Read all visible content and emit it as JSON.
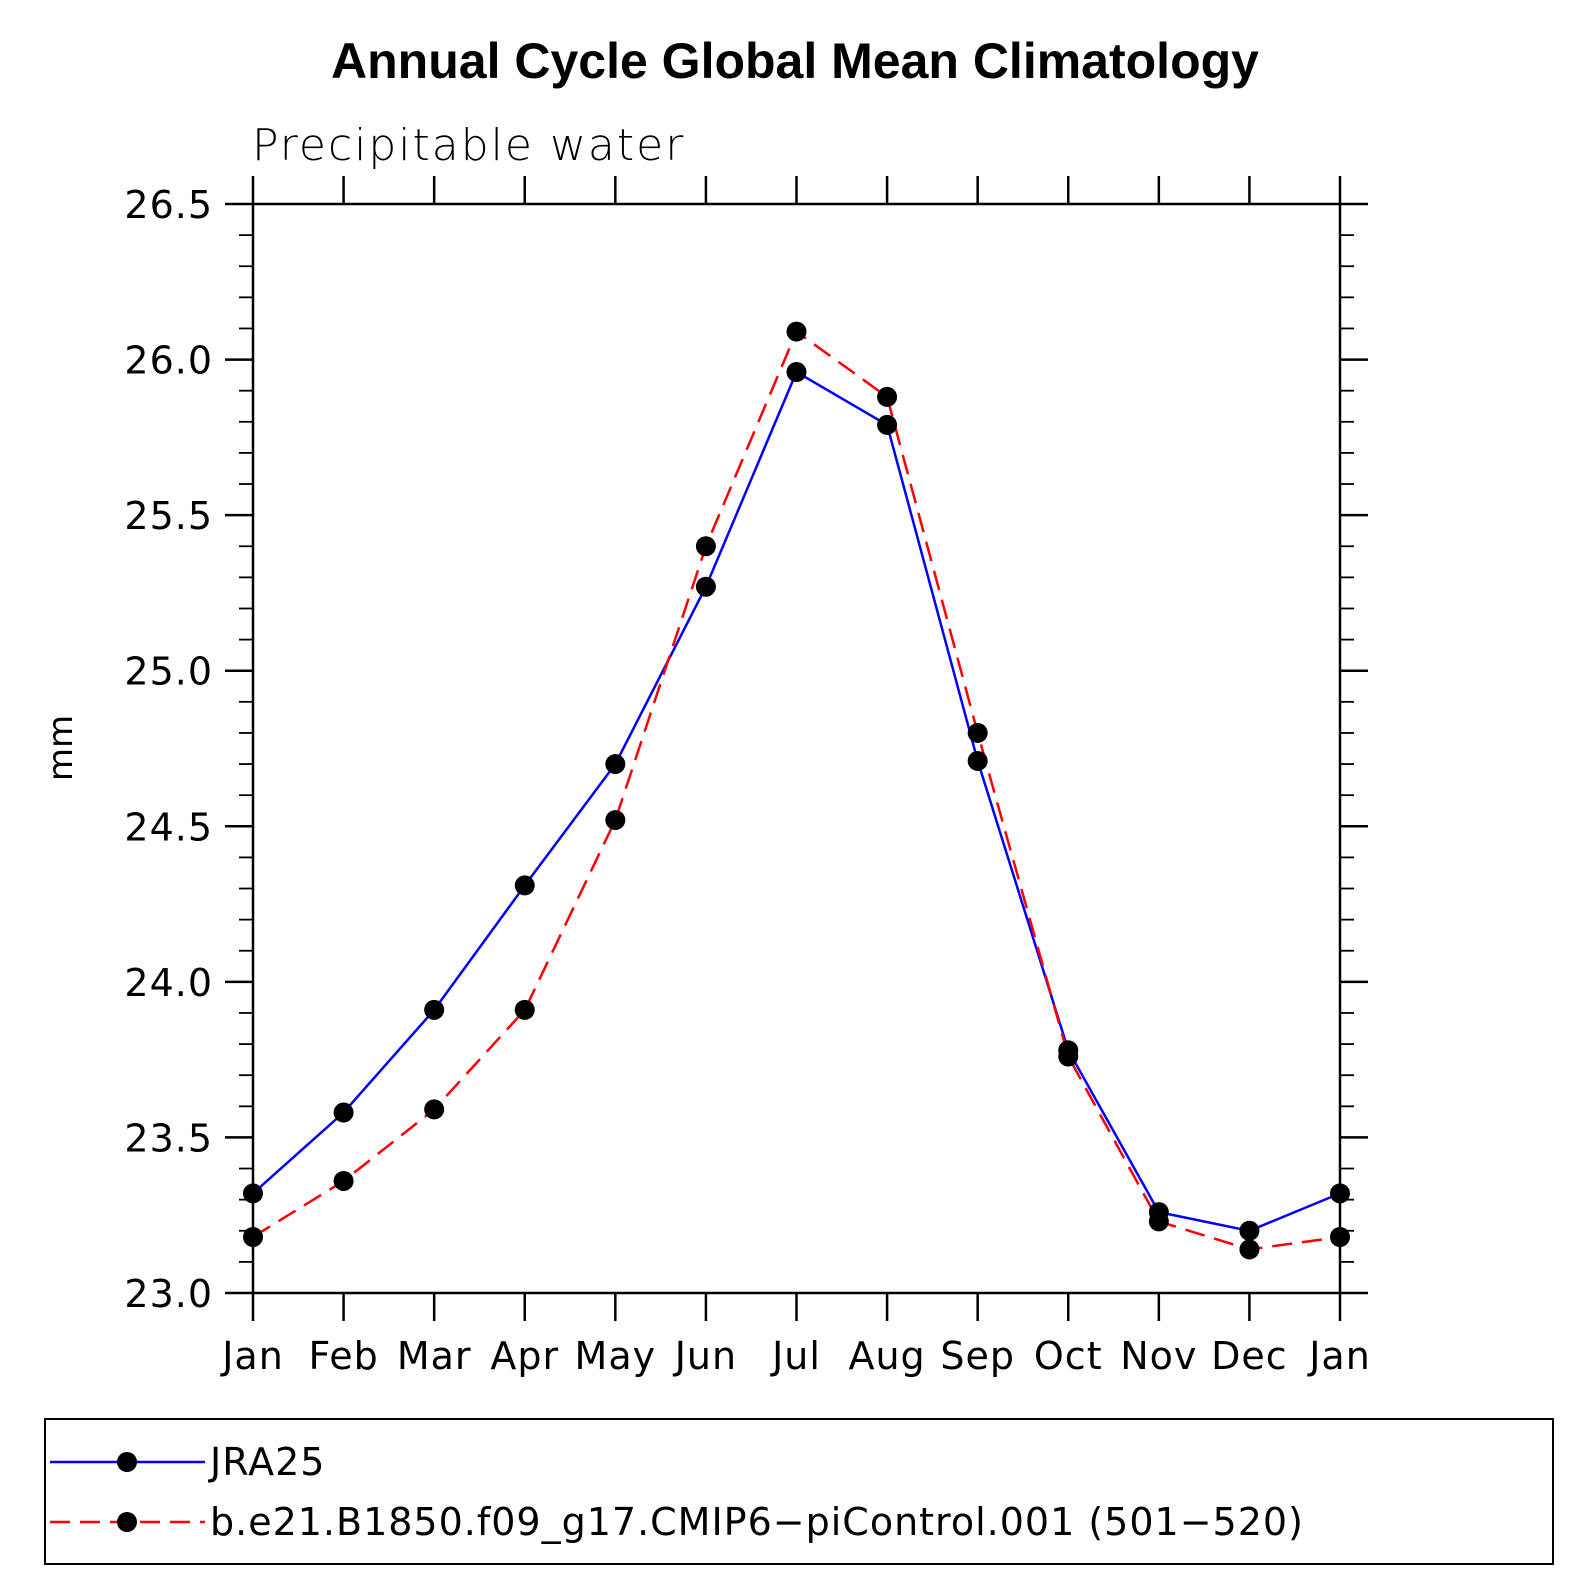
{
  "chart_data": {
    "type": "line",
    "title": "Annual Cycle Global Mean Climatology",
    "subtitle": "Precipitable water",
    "xlabel": "",
    "ylabel": "mm",
    "categories": [
      "Jan",
      "Feb",
      "Mar",
      "Apr",
      "May",
      "Jun",
      "Jul",
      "Aug",
      "Sep",
      "Oct",
      "Nov",
      "Dec",
      "Jan"
    ],
    "ylim": [
      23.0,
      26.5
    ],
    "yticks": [
      "23.0",
      "23.5",
      "24.0",
      "24.5",
      "25.0",
      "25.5",
      "26.0",
      "26.5"
    ],
    "y_minor_step": 0.1,
    "series": [
      {
        "name": "JRA25",
        "color": "#0000ff",
        "dash": "solid",
        "values": [
          23.32,
          23.58,
          23.91,
          24.31,
          24.7,
          25.27,
          25.96,
          25.79,
          24.71,
          23.78,
          23.26,
          23.2,
          23.32
        ]
      },
      {
        "name": "b.e21.B1850.f09_g17.CMIP6−piControl.001 (501−520)",
        "color": "#ff0000",
        "dash": "dashed",
        "values": [
          23.18,
          23.36,
          23.59,
          23.91,
          24.52,
          25.4,
          26.09,
          25.88,
          24.8,
          23.76,
          23.23,
          23.14,
          23.18
        ]
      }
    ],
    "legend_position": "bottom",
    "marker_color": "#000000"
  }
}
